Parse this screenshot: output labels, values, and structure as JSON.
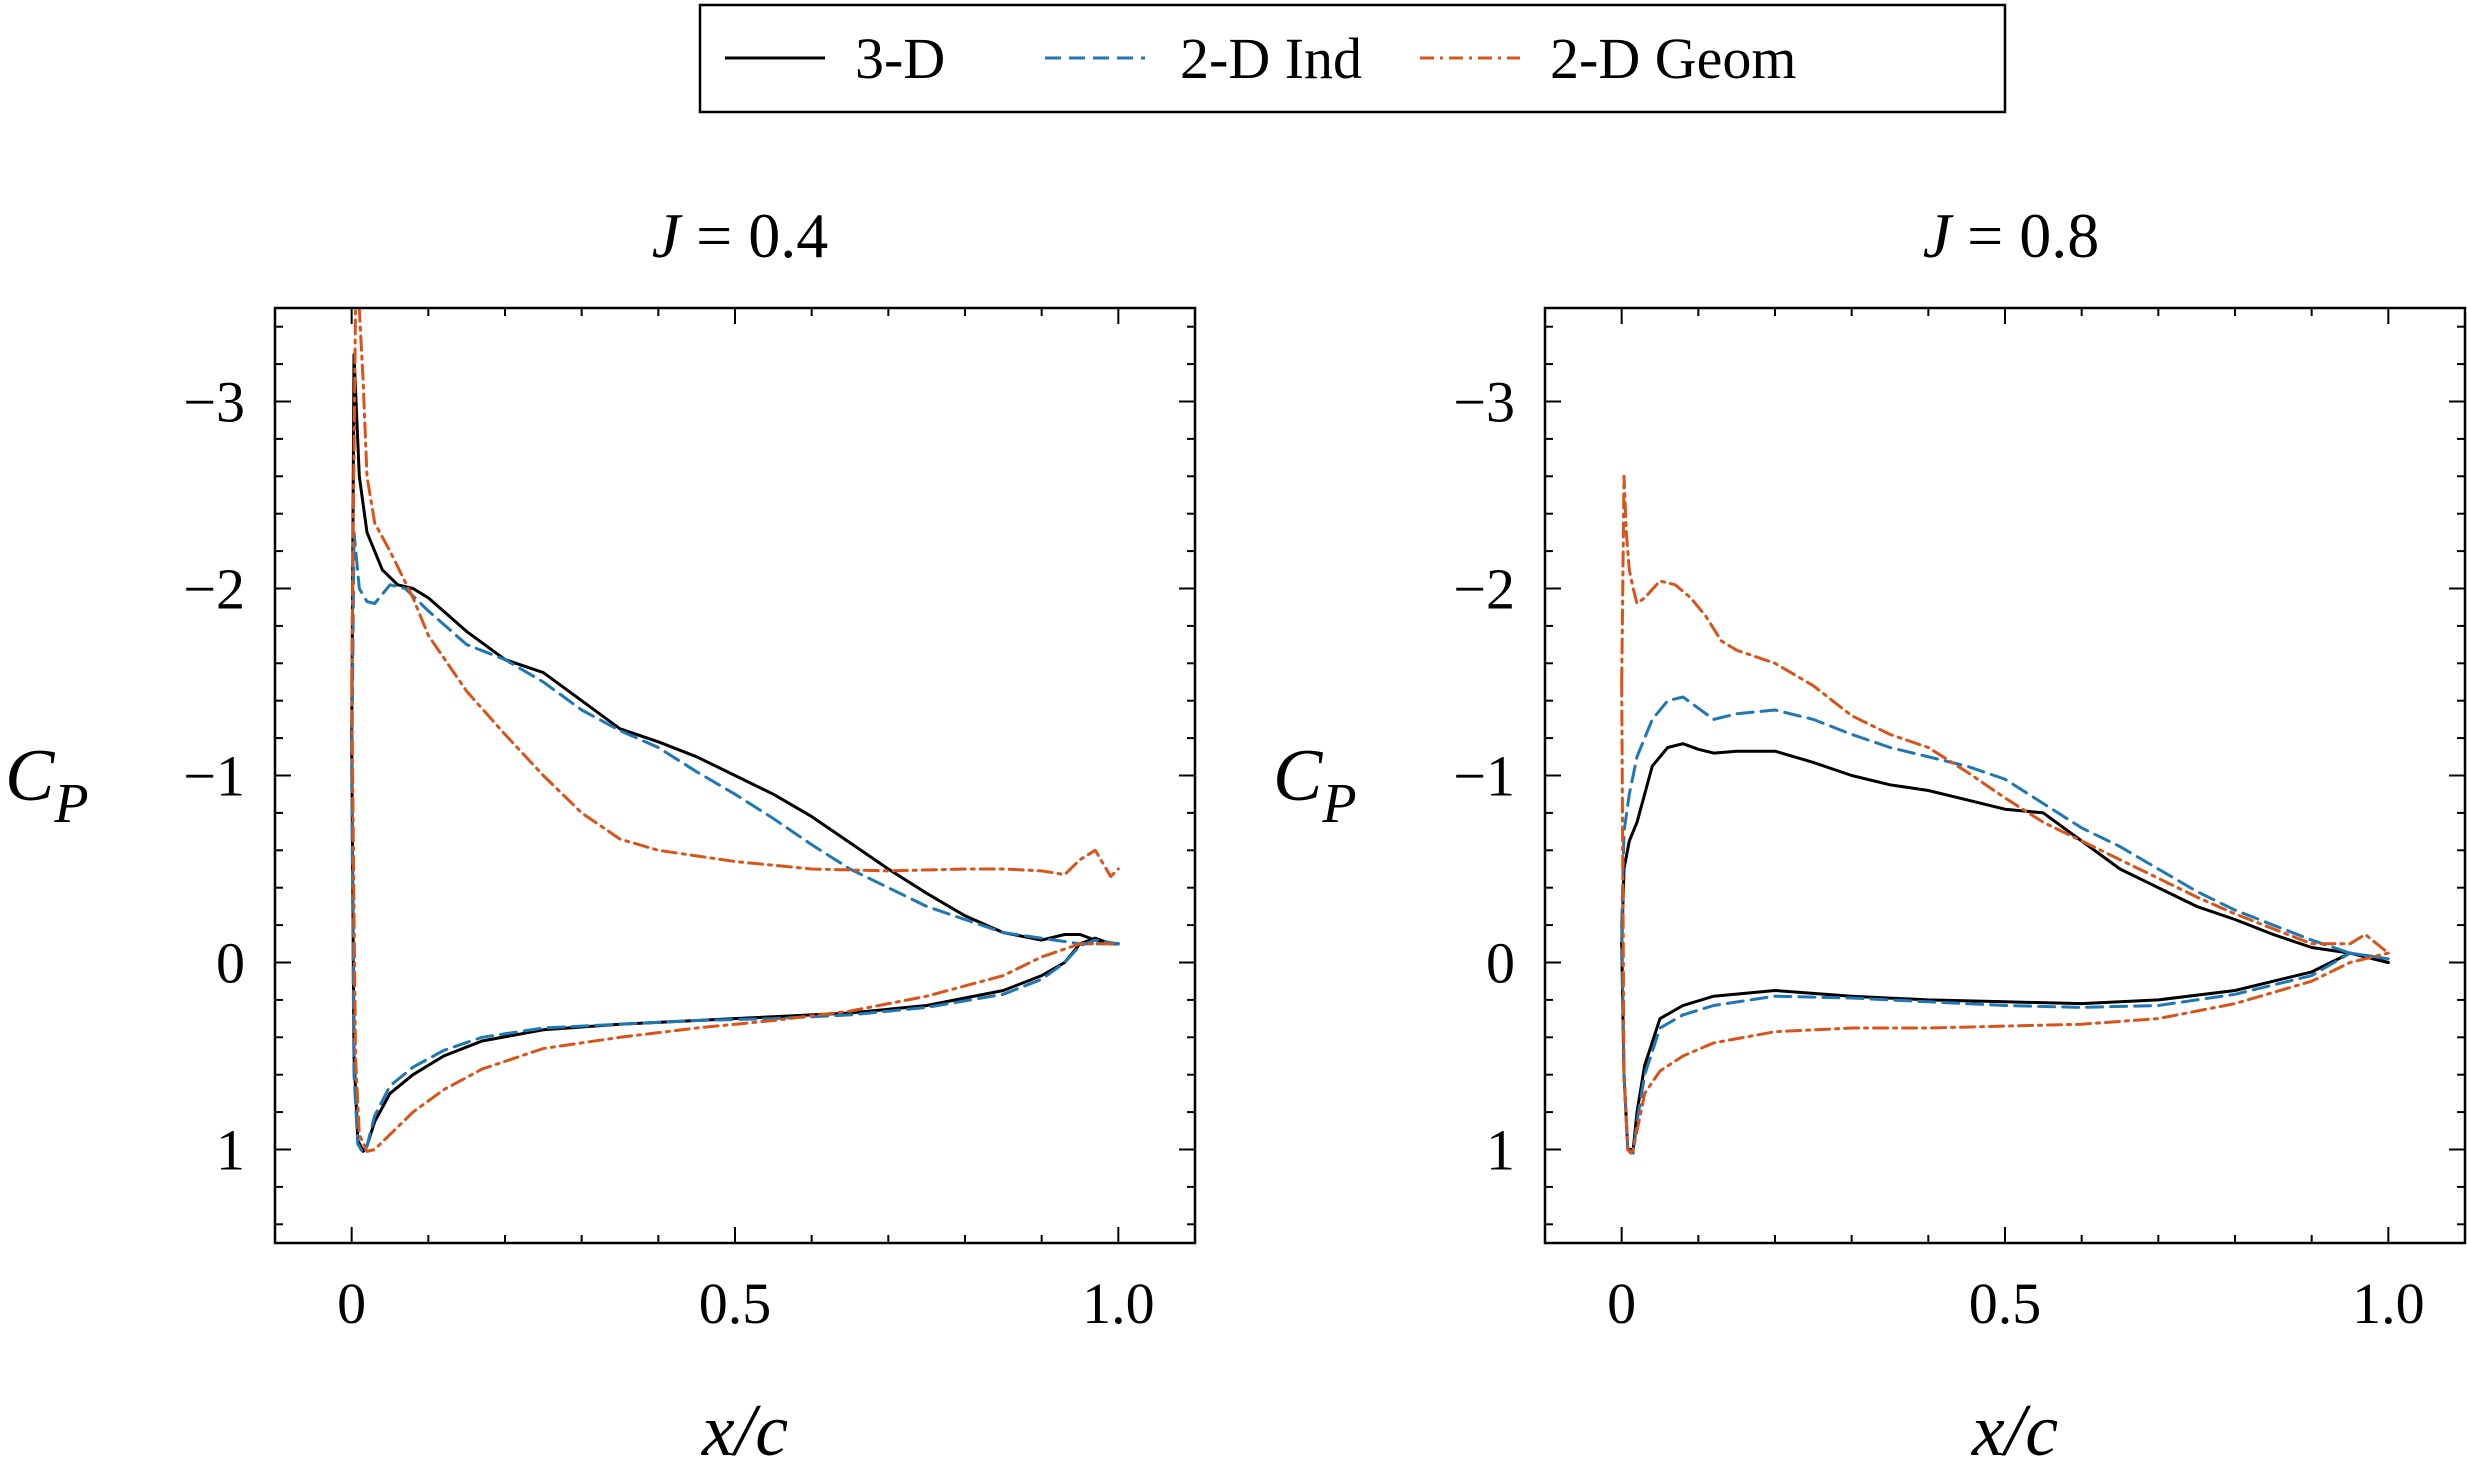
{
  "legend": {
    "entries": [
      {
        "label": "3-D",
        "color": "#000000",
        "dash": "solid"
      },
      {
        "label": "2-D Ind",
        "color": "#1f77b4",
        "dash": "dashed"
      },
      {
        "label": "2-D Geom",
        "color": "#d9541a",
        "dash": "dashdot"
      }
    ]
  },
  "chart_data": [
    {
      "type": "line",
      "title": "J = 0.4",
      "title_j": "J",
      "title_rest": " = 0.4",
      "xlabel": "x/c",
      "ylabel": "C",
      "ylabel_sub": "P",
      "xlim": [
        -0.1,
        1.1
      ],
      "ylim": [
        1.5,
        -3.5
      ],
      "xticks": [
        0,
        0.5,
        1.0
      ],
      "xtick_labels": [
        "0",
        "0.5",
        "1.0"
      ],
      "yticks": [
        -3,
        -2,
        -1,
        0,
        1
      ],
      "ytick_labels": [
        "−3",
        "−2",
        "−1",
        "0",
        "1"
      ],
      "series": [
        {
          "name": "3-D",
          "upper": {
            "x": [
              0.0,
              0.003,
              0.01,
              0.02,
              0.04,
              0.06,
              0.08,
              0.1,
              0.15,
              0.2,
              0.25,
              0.3,
              0.35,
              0.4,
              0.45,
              0.5,
              0.55,
              0.6,
              0.65,
              0.7,
              0.75,
              0.8,
              0.85,
              0.9,
              0.93,
              0.95,
              0.97,
              0.99,
              1.0
            ],
            "y": [
              -1.2,
              -3.25,
              -2.6,
              -2.3,
              -2.1,
              -2.02,
              -2.0,
              -1.95,
              -1.77,
              -1.62,
              -1.55,
              -1.4,
              -1.25,
              -1.18,
              -1.1,
              -1.0,
              -0.9,
              -0.78,
              -0.64,
              -0.5,
              -0.37,
              -0.25,
              -0.16,
              -0.12,
              -0.15,
              -0.15,
              -0.12,
              -0.1,
              -0.1
            ]
          },
          "lower": {
            "x": [
              0.0,
              0.003,
              0.008,
              0.015,
              0.02,
              0.03,
              0.05,
              0.08,
              0.12,
              0.17,
              0.25,
              0.35,
              0.45,
              0.55,
              0.65,
              0.75,
              0.85,
              0.9,
              0.93,
              0.95,
              0.97,
              0.99,
              1.0
            ],
            "y": [
              -1.2,
              0.5,
              0.95,
              1.01,
              0.98,
              0.85,
              0.7,
              0.6,
              0.5,
              0.42,
              0.36,
              0.33,
              0.31,
              0.29,
              0.27,
              0.23,
              0.15,
              0.07,
              0.0,
              -0.1,
              -0.13,
              -0.1,
              -0.1
            ]
          }
        },
        {
          "name": "2-D Ind",
          "upper": {
            "x": [
              0.0,
              0.003,
              0.01,
              0.02,
              0.03,
              0.05,
              0.07,
              0.1,
              0.15,
              0.2,
              0.25,
              0.3,
              0.35,
              0.4,
              0.45,
              0.5,
              0.55,
              0.6,
              0.65,
              0.7,
              0.75,
              0.8,
              0.85,
              0.9,
              0.95,
              1.0
            ],
            "y": [
              -1.0,
              -2.3,
              -2.0,
              -1.93,
              -1.92,
              -2.02,
              -2.0,
              -1.88,
              -1.7,
              -1.62,
              -1.5,
              -1.35,
              -1.24,
              -1.15,
              -1.02,
              -0.9,
              -0.77,
              -0.63,
              -0.5,
              -0.4,
              -0.3,
              -0.23,
              -0.16,
              -0.13,
              -0.1,
              -0.1
            ]
          },
          "lower": {
            "x": [
              0.0,
              0.003,
              0.008,
              0.015,
              0.02,
              0.03,
              0.05,
              0.08,
              0.12,
              0.17,
              0.25,
              0.35,
              0.45,
              0.55,
              0.65,
              0.75,
              0.85,
              0.9,
              0.93,
              0.95,
              0.97,
              1.0
            ],
            "y": [
              -1.0,
              0.6,
              0.97,
              1.02,
              0.98,
              0.82,
              0.66,
              0.56,
              0.47,
              0.4,
              0.35,
              0.33,
              0.31,
              0.3,
              0.28,
              0.24,
              0.17,
              0.09,
              0.0,
              -0.09,
              -0.12,
              -0.1
            ]
          }
        },
        {
          "name": "2-D Geom",
          "upper": {
            "x": [
              0.0,
              0.005,
              0.01,
              0.015,
              0.02,
              0.03,
              0.05,
              0.08,
              0.1,
              0.15,
              0.2,
              0.25,
              0.3,
              0.35,
              0.4,
              0.5,
              0.6,
              0.7,
              0.8,
              0.85,
              0.9,
              0.93,
              0.95,
              0.97,
              0.99,
              1.0
            ],
            "y": [
              -1.5,
              -3.5,
              -3.5,
              -3.1,
              -2.6,
              -2.35,
              -2.2,
              -1.95,
              -1.75,
              -1.45,
              -1.22,
              -1.0,
              -0.8,
              -0.66,
              -0.6,
              -0.54,
              -0.5,
              -0.49,
              -0.5,
              -0.5,
              -0.49,
              -0.47,
              -0.55,
              -0.6,
              -0.46,
              -0.5
            ]
          },
          "lower": {
            "x": [
              0.0,
              0.005,
              0.01,
              0.02,
              0.03,
              0.05,
              0.08,
              0.12,
              0.17,
              0.25,
              0.35,
              0.45,
              0.55,
              0.65,
              0.75,
              0.85,
              0.9,
              0.95,
              1.0
            ],
            "y": [
              -1.5,
              0.5,
              0.92,
              1.01,
              1.0,
              0.92,
              0.8,
              0.68,
              0.57,
              0.46,
              0.4,
              0.35,
              0.31,
              0.26,
              0.18,
              0.07,
              -0.03,
              -0.1,
              -0.1
            ]
          }
        }
      ]
    },
    {
      "type": "line",
      "title": "J = 0.8",
      "title_j": "J",
      "title_rest": " = 0.8",
      "xlabel": "x/c",
      "ylabel": "C",
      "ylabel_sub": "P",
      "xlim": [
        -0.1,
        1.1
      ],
      "ylim": [
        1.5,
        -3.5
      ],
      "xticks": [
        0,
        0.5,
        1.0
      ],
      "xtick_labels": [
        "0",
        "0.5",
        "1.0"
      ],
      "yticks": [
        -3,
        -2,
        -1,
        0,
        1
      ],
      "ytick_labels": [
        "−3",
        "−2",
        "−1",
        "0",
        "1"
      ],
      "series": [
        {
          "name": "3-D",
          "upper": {
            "x": [
              0.0,
              0.003,
              0.01,
              0.02,
              0.04,
              0.06,
              0.08,
              0.1,
              0.12,
              0.15,
              0.2,
              0.25,
              0.3,
              0.35,
              0.4,
              0.45,
              0.5,
              0.55,
              0.6,
              0.65,
              0.7,
              0.75,
              0.8,
              0.85,
              0.9,
              0.95,
              1.0
            ],
            "y": [
              -0.1,
              -0.5,
              -0.65,
              -0.75,
              -1.05,
              -1.15,
              -1.17,
              -1.14,
              -1.12,
              -1.13,
              -1.13,
              -1.07,
              -1.0,
              -0.95,
              -0.92,
              -0.87,
              -0.82,
              -0.8,
              -0.65,
              -0.5,
              -0.4,
              -0.3,
              -0.23,
              -0.15,
              -0.08,
              -0.05,
              0.0
            ]
          },
          "lower": {
            "x": [
              0.0,
              0.003,
              0.008,
              0.015,
              0.02,
              0.03,
              0.05,
              0.08,
              0.12,
              0.2,
              0.3,
              0.4,
              0.5,
              0.6,
              0.7,
              0.8,
              0.9,
              0.95,
              1.0
            ],
            "y": [
              -0.1,
              0.6,
              1.0,
              1.0,
              0.8,
              0.55,
              0.3,
              0.23,
              0.18,
              0.15,
              0.18,
              0.2,
              0.21,
              0.22,
              0.2,
              0.15,
              0.05,
              -0.05,
              0.0
            ]
          }
        },
        {
          "name": "2-D Ind",
          "upper": {
            "x": [
              0.0,
              0.003,
              0.01,
              0.02,
              0.04,
              0.06,
              0.08,
              0.1,
              0.12,
              0.15,
              0.2,
              0.25,
              0.3,
              0.35,
              0.4,
              0.45,
              0.5,
              0.55,
              0.6,
              0.65,
              0.7,
              0.75,
              0.8,
              0.85,
              0.9,
              0.95,
              1.0
            ],
            "y": [
              -0.2,
              -0.7,
              -0.9,
              -1.1,
              -1.3,
              -1.4,
              -1.42,
              -1.36,
              -1.3,
              -1.33,
              -1.35,
              -1.3,
              -1.22,
              -1.15,
              -1.1,
              -1.05,
              -0.98,
              -0.85,
              -0.72,
              -0.62,
              -0.5,
              -0.38,
              -0.28,
              -0.2,
              -0.12,
              -0.05,
              -0.02
            ]
          },
          "lower": {
            "x": [
              0.0,
              0.003,
              0.008,
              0.015,
              0.02,
              0.03,
              0.05,
              0.08,
              0.12,
              0.2,
              0.3,
              0.4,
              0.5,
              0.6,
              0.7,
              0.8,
              0.9,
              0.95,
              1.0
            ],
            "y": [
              -0.2,
              0.6,
              1.0,
              1.02,
              0.85,
              0.6,
              0.35,
              0.28,
              0.23,
              0.18,
              0.19,
              0.21,
              0.23,
              0.24,
              0.23,
              0.17,
              0.07,
              -0.05,
              -0.02
            ]
          }
        },
        {
          "name": "2-D Geom",
          "upper": {
            "x": [
              0.0,
              0.003,
              0.006,
              0.01,
              0.015,
              0.02,
              0.03,
              0.05,
              0.07,
              0.09,
              0.11,
              0.13,
              0.15,
              0.2,
              0.25,
              0.3,
              0.35,
              0.4,
              0.45,
              0.5,
              0.55,
              0.6,
              0.65,
              0.7,
              0.75,
              0.8,
              0.85,
              0.9,
              0.95,
              0.97,
              1.0
            ],
            "y": [
              -1.5,
              -2.6,
              -2.3,
              -2.1,
              -2.0,
              -1.92,
              -1.95,
              -2.04,
              -2.02,
              -1.95,
              -1.85,
              -1.72,
              -1.67,
              -1.6,
              -1.48,
              -1.32,
              -1.22,
              -1.15,
              -1.02,
              -0.88,
              -0.75,
              -0.65,
              -0.55,
              -0.45,
              -0.35,
              -0.26,
              -0.18,
              -0.1,
              -0.1,
              -0.15,
              -0.05
            ]
          },
          "lower": {
            "x": [
              0.0,
              0.003,
              0.008,
              0.012,
              0.015,
              0.02,
              0.03,
              0.05,
              0.08,
              0.12,
              0.2,
              0.3,
              0.4,
              0.5,
              0.6,
              0.7,
              0.8,
              0.9,
              0.95,
              1.0
            ],
            "y": [
              -1.5,
              0.6,
              1.0,
              1.02,
              1.0,
              0.9,
              0.7,
              0.58,
              0.5,
              0.43,
              0.37,
              0.35,
              0.35,
              0.34,
              0.33,
              0.3,
              0.22,
              0.1,
              0.0,
              -0.05
            ]
          }
        }
      ]
    }
  ]
}
